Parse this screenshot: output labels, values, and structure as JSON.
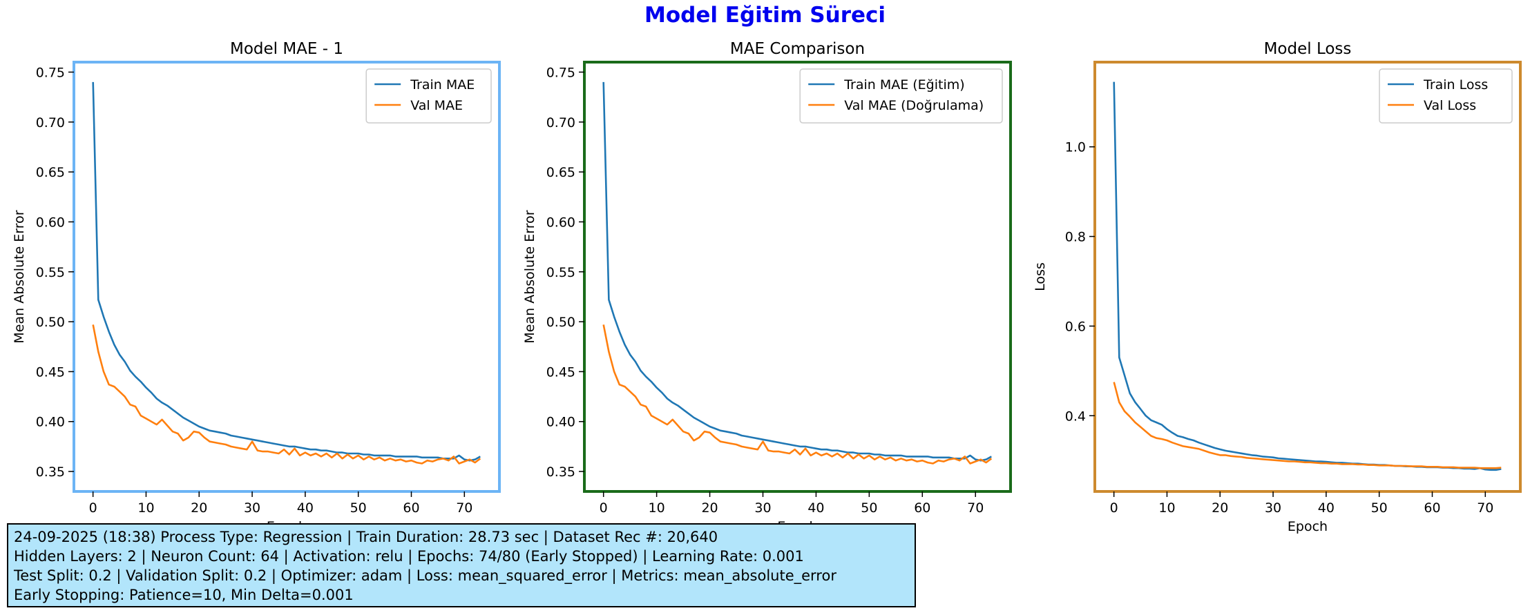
{
  "figure": {
    "title": "Model Eğitim Süreci",
    "title_color": "#0000ee"
  },
  "chart_data": [
    {
      "type": "line",
      "title": "Model MAE - 1",
      "xlabel": "Epoch",
      "ylabel": "Mean Absolute Error",
      "xlim": [
        -3.6,
        76.6
      ],
      "ylim": [
        0.33,
        0.76
      ],
      "xticks": [
        0,
        10,
        20,
        30,
        40,
        50,
        60,
        70
      ],
      "yticks": [
        0.35,
        0.4,
        0.45,
        0.5,
        0.55,
        0.6,
        0.65,
        0.7,
        0.75
      ],
      "tick_decimals": 2,
      "grid": false,
      "legend": "top-right",
      "frame_color": "#6cb4f5",
      "x": [
        0,
        1,
        2,
        3,
        4,
        5,
        6,
        7,
        8,
        9,
        10,
        11,
        12,
        13,
        14,
        15,
        16,
        17,
        18,
        19,
        20,
        21,
        22,
        23,
        24,
        25,
        26,
        27,
        28,
        29,
        30,
        31,
        32,
        33,
        34,
        35,
        36,
        37,
        38,
        39,
        40,
        41,
        42,
        43,
        44,
        45,
        46,
        47,
        48,
        49,
        50,
        51,
        52,
        53,
        54,
        55,
        56,
        57,
        58,
        59,
        60,
        61,
        62,
        63,
        64,
        65,
        66,
        67,
        68,
        69,
        70,
        71,
        72,
        73
      ],
      "series": [
        {
          "name": "Train MAE",
          "color": "#1f77b4",
          "values": [
            0.74,
            0.522,
            0.505,
            0.49,
            0.477,
            0.467,
            0.46,
            0.451,
            0.445,
            0.44,
            0.434,
            0.429,
            0.423,
            0.419,
            0.416,
            0.412,
            0.408,
            0.404,
            0.401,
            0.398,
            0.395,
            0.393,
            0.391,
            0.39,
            0.389,
            0.388,
            0.386,
            0.385,
            0.384,
            0.383,
            0.382,
            0.381,
            0.38,
            0.379,
            0.378,
            0.377,
            0.376,
            0.375,
            0.375,
            0.374,
            0.373,
            0.372,
            0.372,
            0.371,
            0.371,
            0.37,
            0.369,
            0.369,
            0.368,
            0.368,
            0.368,
            0.367,
            0.367,
            0.366,
            0.366,
            0.366,
            0.366,
            0.365,
            0.365,
            0.365,
            0.365,
            0.365,
            0.364,
            0.364,
            0.364,
            0.364,
            0.363,
            0.363,
            0.363,
            0.366,
            0.362,
            0.361,
            0.362,
            0.365
          ]
        },
        {
          "name": "Val MAE",
          "color": "#ff7f0e",
          "values": [
            0.497,
            0.47,
            0.45,
            0.437,
            0.435,
            0.43,
            0.425,
            0.417,
            0.415,
            0.406,
            0.403,
            0.4,
            0.397,
            0.402,
            0.396,
            0.39,
            0.388,
            0.381,
            0.384,
            0.39,
            0.389,
            0.384,
            0.38,
            0.379,
            0.378,
            0.377,
            0.375,
            0.374,
            0.373,
            0.372,
            0.38,
            0.371,
            0.37,
            0.37,
            0.369,
            0.368,
            0.372,
            0.367,
            0.373,
            0.366,
            0.369,
            0.366,
            0.368,
            0.365,
            0.368,
            0.364,
            0.368,
            0.363,
            0.367,
            0.363,
            0.366,
            0.362,
            0.365,
            0.362,
            0.364,
            0.361,
            0.363,
            0.361,
            0.362,
            0.36,
            0.361,
            0.359,
            0.358,
            0.361,
            0.36,
            0.362,
            0.363,
            0.361,
            0.365,
            0.358,
            0.36,
            0.362,
            0.359,
            0.363
          ]
        }
      ]
    },
    {
      "type": "line",
      "title": "MAE Comparison",
      "xlabel": "Epoch",
      "ylabel": "Mean Absolute Error",
      "xlim": [
        -3.6,
        76.6
      ],
      "ylim": [
        0.33,
        0.76
      ],
      "xticks": [
        0,
        10,
        20,
        30,
        40,
        50,
        60,
        70
      ],
      "yticks": [
        0.35,
        0.4,
        0.45,
        0.5,
        0.55,
        0.6,
        0.65,
        0.7,
        0.75
      ],
      "tick_decimals": 2,
      "grid": false,
      "legend": "top-right",
      "frame_color": "#1a6b1a",
      "x": [
        0,
        1,
        2,
        3,
        4,
        5,
        6,
        7,
        8,
        9,
        10,
        11,
        12,
        13,
        14,
        15,
        16,
        17,
        18,
        19,
        20,
        21,
        22,
        23,
        24,
        25,
        26,
        27,
        28,
        29,
        30,
        31,
        32,
        33,
        34,
        35,
        36,
        37,
        38,
        39,
        40,
        41,
        42,
        43,
        44,
        45,
        46,
        47,
        48,
        49,
        50,
        51,
        52,
        53,
        54,
        55,
        56,
        57,
        58,
        59,
        60,
        61,
        62,
        63,
        64,
        65,
        66,
        67,
        68,
        69,
        70,
        71,
        72,
        73
      ],
      "series": [
        {
          "name": "Train MAE (Eğitim)",
          "color": "#1f77b4",
          "values": [
            0.74,
            0.522,
            0.505,
            0.49,
            0.477,
            0.467,
            0.46,
            0.451,
            0.445,
            0.44,
            0.434,
            0.429,
            0.423,
            0.419,
            0.416,
            0.412,
            0.408,
            0.404,
            0.401,
            0.398,
            0.395,
            0.393,
            0.391,
            0.39,
            0.389,
            0.388,
            0.386,
            0.385,
            0.384,
            0.383,
            0.382,
            0.381,
            0.38,
            0.379,
            0.378,
            0.377,
            0.376,
            0.375,
            0.375,
            0.374,
            0.373,
            0.372,
            0.372,
            0.371,
            0.371,
            0.37,
            0.369,
            0.369,
            0.368,
            0.368,
            0.368,
            0.367,
            0.367,
            0.366,
            0.366,
            0.366,
            0.366,
            0.365,
            0.365,
            0.365,
            0.365,
            0.365,
            0.364,
            0.364,
            0.364,
            0.364,
            0.363,
            0.363,
            0.363,
            0.366,
            0.362,
            0.361,
            0.362,
            0.365
          ]
        },
        {
          "name": "Val MAE (Doğrulama)",
          "color": "#ff7f0e",
          "values": [
            0.497,
            0.47,
            0.45,
            0.437,
            0.435,
            0.43,
            0.425,
            0.417,
            0.415,
            0.406,
            0.403,
            0.4,
            0.397,
            0.402,
            0.396,
            0.39,
            0.388,
            0.381,
            0.384,
            0.39,
            0.389,
            0.384,
            0.38,
            0.379,
            0.378,
            0.377,
            0.375,
            0.374,
            0.373,
            0.372,
            0.38,
            0.371,
            0.37,
            0.37,
            0.369,
            0.368,
            0.372,
            0.367,
            0.373,
            0.366,
            0.369,
            0.366,
            0.368,
            0.365,
            0.368,
            0.364,
            0.368,
            0.363,
            0.367,
            0.363,
            0.366,
            0.362,
            0.365,
            0.362,
            0.364,
            0.361,
            0.363,
            0.361,
            0.362,
            0.36,
            0.361,
            0.359,
            0.358,
            0.361,
            0.36,
            0.362,
            0.363,
            0.361,
            0.365,
            0.358,
            0.36,
            0.362,
            0.359,
            0.363
          ]
        }
      ]
    },
    {
      "type": "line",
      "title": "Model Loss",
      "xlabel": "Epoch",
      "ylabel": "Loss",
      "xlim": [
        -3.6,
        76.6
      ],
      "ylim": [
        0.231,
        1.189
      ],
      "xticks": [
        0,
        10,
        20,
        30,
        40,
        50,
        60,
        70
      ],
      "yticks": [
        0.4,
        0.6,
        0.8,
        1.0
      ],
      "tick_decimals": 1,
      "grid": false,
      "legend": "top-right",
      "frame_color": "#cd8a2e",
      "x": [
        0,
        1,
        2,
        3,
        4,
        5,
        6,
        7,
        8,
        9,
        10,
        11,
        12,
        13,
        14,
        15,
        16,
        17,
        18,
        19,
        20,
        21,
        22,
        23,
        24,
        25,
        26,
        27,
        28,
        29,
        30,
        31,
        32,
        33,
        34,
        35,
        36,
        37,
        38,
        39,
        40,
        41,
        42,
        43,
        44,
        45,
        46,
        47,
        48,
        49,
        50,
        51,
        52,
        53,
        54,
        55,
        56,
        57,
        58,
        59,
        60,
        61,
        62,
        63,
        64,
        65,
        66,
        67,
        68,
        69,
        70,
        71,
        72,
        73
      ],
      "series": [
        {
          "name": "Train Loss",
          "color": "#1f77b4",
          "values": [
            1.145,
            0.53,
            0.49,
            0.45,
            0.43,
            0.415,
            0.4,
            0.39,
            0.385,
            0.38,
            0.37,
            0.362,
            0.355,
            0.352,
            0.348,
            0.345,
            0.34,
            0.336,
            0.332,
            0.328,
            0.325,
            0.322,
            0.32,
            0.318,
            0.316,
            0.314,
            0.312,
            0.311,
            0.309,
            0.308,
            0.307,
            0.305,
            0.304,
            0.303,
            0.302,
            0.301,
            0.3,
            0.299,
            0.298,
            0.298,
            0.297,
            0.296,
            0.295,
            0.295,
            0.294,
            0.293,
            0.293,
            0.292,
            0.291,
            0.291,
            0.29,
            0.29,
            0.289,
            0.288,
            0.288,
            0.287,
            0.287,
            0.286,
            0.286,
            0.285,
            0.285,
            0.285,
            0.284,
            0.284,
            0.283,
            0.283,
            0.282,
            0.282,
            0.281,
            0.283,
            0.28,
            0.279,
            0.279,
            0.281
          ]
        },
        {
          "name": "Val Loss",
          "color": "#ff7f0e",
          "values": [
            0.475,
            0.43,
            0.41,
            0.398,
            0.385,
            0.375,
            0.365,
            0.355,
            0.35,
            0.348,
            0.345,
            0.34,
            0.336,
            0.332,
            0.33,
            0.328,
            0.326,
            0.322,
            0.318,
            0.315,
            0.312,
            0.312,
            0.31,
            0.309,
            0.308,
            0.306,
            0.305,
            0.304,
            0.303,
            0.302,
            0.301,
            0.3,
            0.299,
            0.298,
            0.298,
            0.297,
            0.296,
            0.296,
            0.295,
            0.294,
            0.294,
            0.293,
            0.293,
            0.292,
            0.292,
            0.292,
            0.291,
            0.291,
            0.29,
            0.29,
            0.289,
            0.289,
            0.289,
            0.288,
            0.288,
            0.288,
            0.287,
            0.287,
            0.287,
            0.286,
            0.286,
            0.286,
            0.285,
            0.285,
            0.285,
            0.284,
            0.284,
            0.284,
            0.284,
            0.283,
            0.283,
            0.283,
            0.283,
            0.284
          ]
        }
      ]
    }
  ],
  "info": {
    "line1": "24-09-2025  (18:38)  Process Type: Regression | Train Duration: 28.73 sec | Dataset Rec #: 20,640",
    "line2": "Hidden Layers: 2 | Neuron Count: 64 | Activation: relu | Epochs: 74/80 (Early Stopped) | Learning Rate: 0.001",
    "line3": "Test Split: 0.2 | Validation Split: 0.2 | Optimizer: adam | Loss: mean_squared_error | Metrics: mean_absolute_error",
    "line4": "Early Stopping: Patience=10, Min Delta=0.001"
  }
}
